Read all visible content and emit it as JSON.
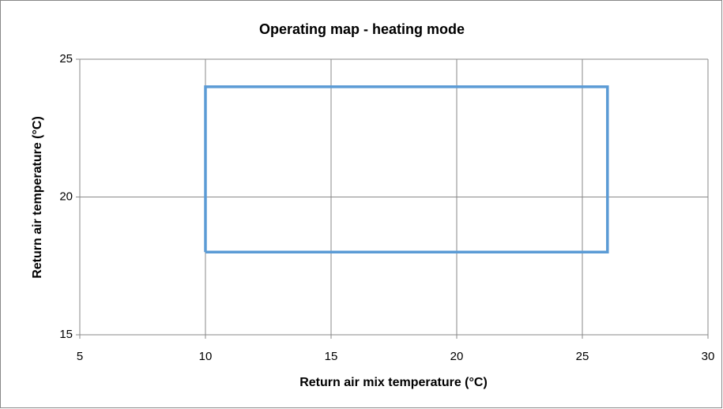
{
  "chart_data": {
    "type": "line",
    "title": "Operating map - heating mode",
    "x_label": "Return air mix temperature (°C)",
    "y_label": "Return air temperature (°C)",
    "x": [
      10,
      10,
      26,
      26,
      10
    ],
    "values": [
      18,
      24,
      24,
      18,
      18
    ],
    "color": "#5b9bd5",
    "xlim": [
      5,
      30
    ],
    "xticks": [
      5,
      10,
      15,
      20,
      25,
      30
    ],
    "ylim": [
      15,
      25
    ],
    "yticks": [
      15,
      20,
      25
    ],
    "grid": true
  }
}
